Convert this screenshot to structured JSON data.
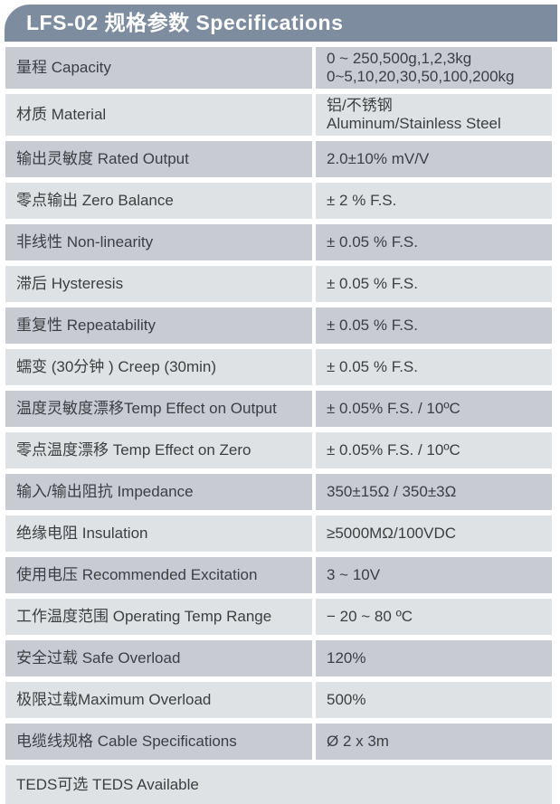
{
  "header": {
    "title": "LFS-02 规格参数 Specifications"
  },
  "colors": {
    "header_bg": "#7d8d9f",
    "row_dark": "#c8ccd2",
    "row_light": "#dfe2e5",
    "text": "#3b3e43"
  },
  "table": {
    "rows": [
      {
        "label": "量程 Capacity",
        "value": "0 ~ 250,500g,1,2,3kg\n0~5,10,20,30,50,100,200kg"
      },
      {
        "label": "材质 Material",
        "value": "铝/不锈钢\nAluminum/Stainless Steel"
      },
      {
        "label": "输出灵敏度 Rated Output",
        "value": "2.0±10% mV/V"
      },
      {
        "label": "零点输出  Zero Balance",
        "value": "± 2 % F.S."
      },
      {
        "label": "非线性 Non-linearity",
        "value": "± 0.05 % F.S."
      },
      {
        "label": "滞后 Hysteresis",
        "value": "± 0.05 % F.S."
      },
      {
        "label": "重复性 Repeatability",
        "value": "± 0.05 % F.S."
      },
      {
        "label": "蠕变 (30分钟 ) Creep (30min)",
        "value": "± 0.05 % F.S."
      },
      {
        "label": "温度灵敏度漂移Temp Effect on Output",
        "value": "± 0.05% F.S. / 10ºC"
      },
      {
        "label": "零点温度漂移 Temp Effect on Zero",
        "value": "± 0.05% F.S. / 10ºC"
      },
      {
        "label": "输入/输出阻抗 Impedance",
        "value": "350±15Ω / 350±3Ω"
      },
      {
        "label": "绝缘电阻  Insulation",
        "value": "≥5000MΩ/100VDC"
      },
      {
        "label": "使用电压 Recommended Excitation",
        "value": "3 ~ 10V"
      },
      {
        "label": "工作温度范围 Operating Temp  Range",
        "value": "− 20 ~ 80 ºC"
      },
      {
        "label": "安全过载 Safe Overload",
        "value": "120%"
      },
      {
        "label": "极限过载Maximum Overload",
        "value": "500%"
      },
      {
        "label": "电缆线规格 Cable Specifications",
        "value": "Ø 2 x 3m"
      }
    ],
    "footer_row": {
      "label": "TEDS可选 TEDS Available"
    }
  }
}
